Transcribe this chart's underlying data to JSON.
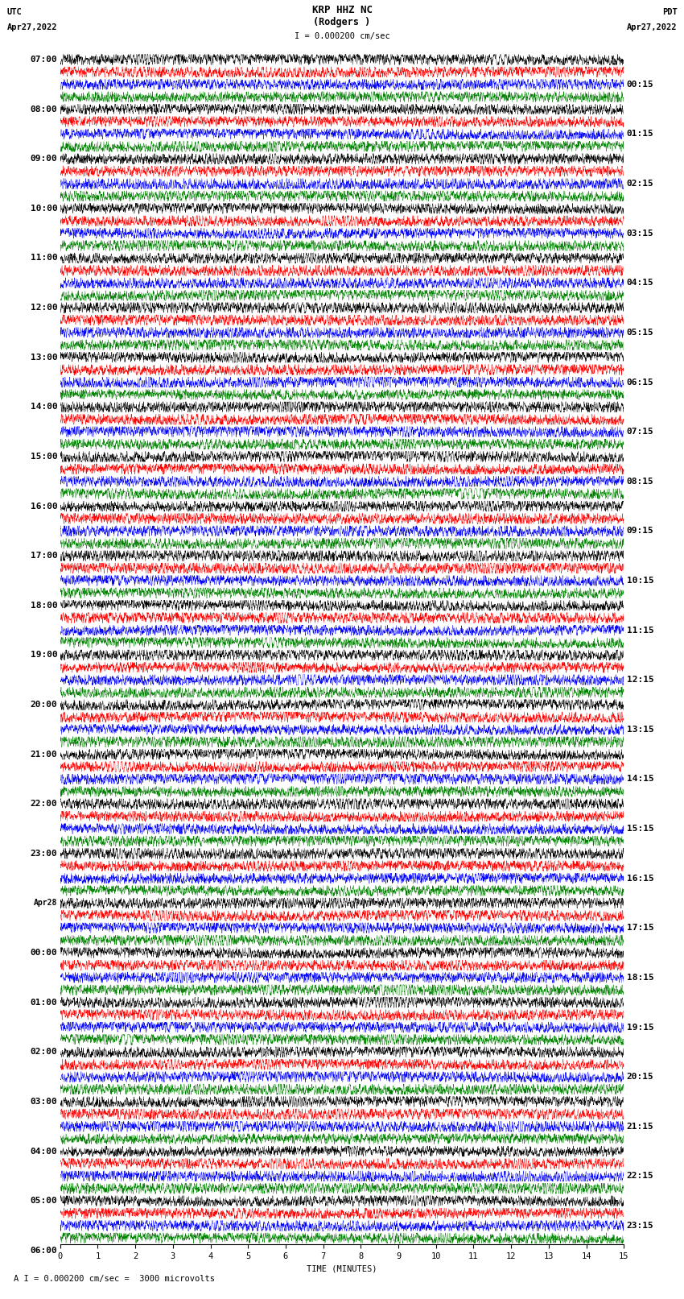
{
  "title_line1": "KRP HHZ NC",
  "title_line2": "(Rodgers )",
  "scale_label": "I = 0.000200 cm/sec",
  "bottom_label": "A I = 0.000200 cm/sec =  3000 microvolts",
  "utc_label": "UTC",
  "utc_date": "Apr27,2022",
  "pdt_label": "PDT",
  "pdt_date": "Apr27,2022",
  "xlabel": "TIME (MINUTES)",
  "left_times_utc": [
    "07:00",
    "08:00",
    "09:00",
    "10:00",
    "11:00",
    "12:00",
    "13:00",
    "14:00",
    "15:00",
    "16:00",
    "17:00",
    "18:00",
    "19:00",
    "20:00",
    "21:00",
    "22:00",
    "23:00",
    "Apr28",
    "00:00",
    "01:00",
    "02:00",
    "03:00",
    "04:00",
    "05:00",
    "06:00"
  ],
  "right_times_pdt": [
    "00:15",
    "01:15",
    "02:15",
    "03:15",
    "04:15",
    "05:15",
    "06:15",
    "07:15",
    "08:15",
    "09:15",
    "10:15",
    "11:15",
    "12:15",
    "13:15",
    "14:15",
    "15:15",
    "16:15",
    "17:15",
    "18:15",
    "19:15",
    "20:15",
    "21:15",
    "22:15",
    "23:15"
  ],
  "colors": [
    "black",
    "red",
    "blue",
    "green"
  ],
  "n_rows": 96,
  "n_minutes": 15,
  "samples_per_row": 3000,
  "amplitude_scale": 0.42,
  "noise_base": 0.18,
  "background_color": "white",
  "trace_linewidth": 0.3,
  "font_family": "monospace",
  "font_size_title": 9,
  "font_size_label": 7.5,
  "font_size_time": 8,
  "xmin": 0,
  "xmax": 15
}
